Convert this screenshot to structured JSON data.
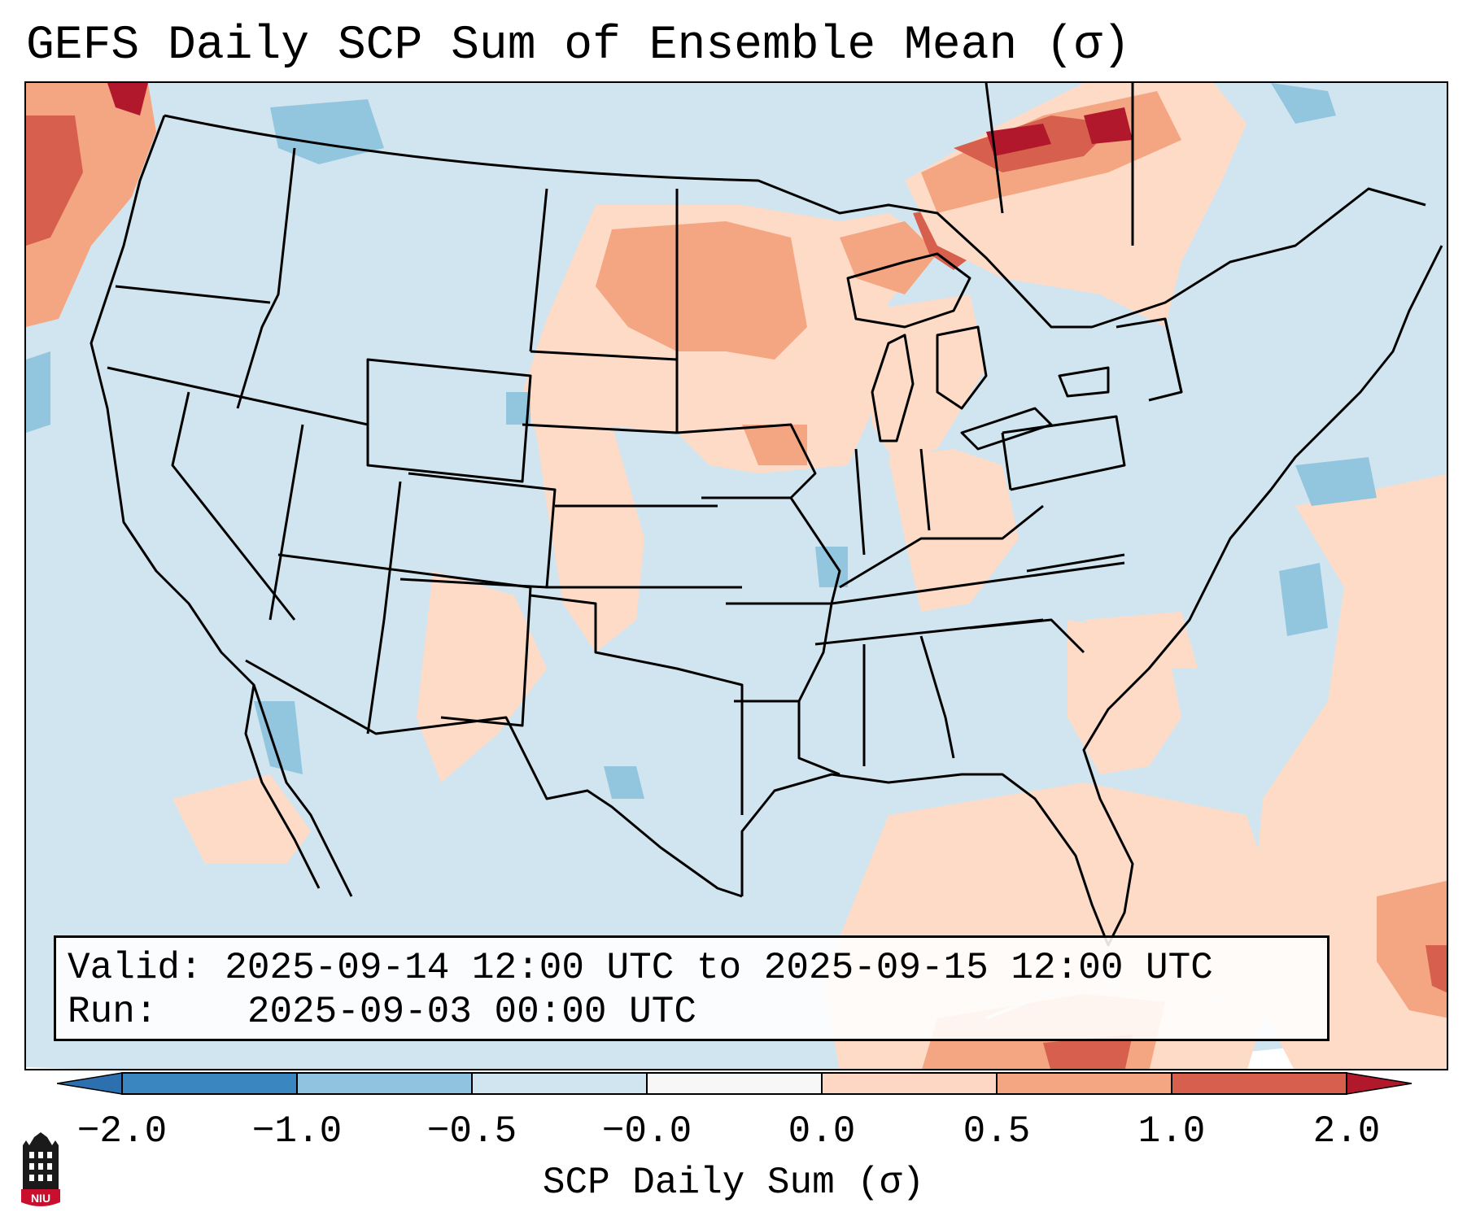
{
  "title": "GEFS Daily SCP Sum of Ensemble Mean (σ)",
  "info": {
    "valid_label": "Valid:",
    "valid_value": "2025-09-14 12:00 UTC to 2025-09-15 12:00 UTC",
    "run_label": "Run:",
    "run_value": "2025-09-03 00:00 UTC"
  },
  "colorbar": {
    "label": "SCP Daily Sum (σ)",
    "ticks": [
      "−2.0",
      "−1.0",
      "−0.5",
      "−0.0",
      "0.0",
      "0.5",
      "1.0",
      "2.0"
    ],
    "colors": [
      "#3a86c0",
      "#90c3df",
      "#d1e5f0",
      "#f7f7f7",
      "#fdd7c4",
      "#f4a582",
      "#d6604d"
    ],
    "extend_low_color": "#2c70b0",
    "extend_high_color": "#b2182b"
  },
  "map_colors": {
    "background": "#d1e5f0",
    "light_blue": "#92c5de",
    "light_red": "#fddbc7",
    "medium_red": "#f4a582",
    "strong_red": "#d6604d",
    "dark_red": "#b2182b",
    "border": "#000000"
  },
  "logo": {
    "text": "NIU",
    "color": "#c8102e"
  }
}
